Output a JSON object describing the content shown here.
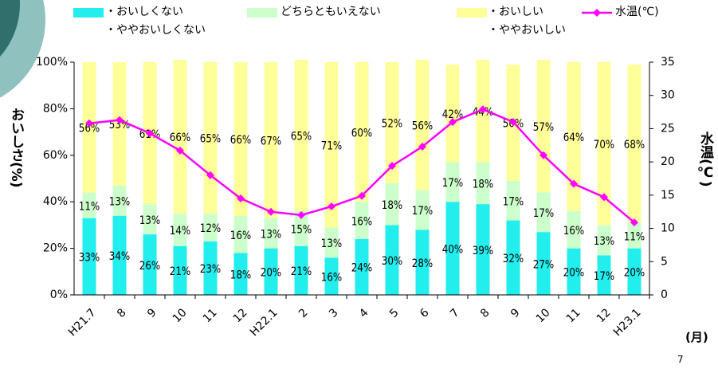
{
  "chart_data": {
    "type": "stacked-bar-line",
    "categories": [
      "H21.7",
      "8",
      "9",
      "10",
      "11",
      "12",
      "H22.1",
      "2",
      "3",
      "4",
      "5",
      "6",
      "7",
      "8",
      "9",
      "10",
      "11",
      "12",
      "H23.1"
    ],
    "series": [
      {
        "name": "・おいしくない\n・ややおいしくない",
        "color": "#22eeee",
        "values": [
          33,
          34,
          26,
          21,
          23,
          18,
          20,
          21,
          16,
          24,
          30,
          28,
          40,
          39,
          32,
          27,
          20,
          17,
          20
        ],
        "value_labels": [
          "33%",
          "34%",
          "26%",
          "21%",
          "23%",
          "18%",
          "20%",
          "21%",
          "16%",
          "24%",
          "30%",
          "28%",
          "40%",
          "39%",
          "32%",
          "27%",
          "20%",
          "17%",
          "20%"
        ]
      },
      {
        "name": "どちらともいえない",
        "color": "#ccffcc",
        "values": [
          11,
          13,
          13,
          14,
          12,
          16,
          13,
          15,
          13,
          16,
          18,
          17,
          17,
          18,
          17,
          17,
          16,
          13,
          11
        ],
        "value_labels": [
          "11%",
          "13%",
          "13%",
          "14%",
          "12%",
          "16%",
          "13%",
          "15%",
          "13%",
          "16%",
          "18%",
          "17%",
          "17%",
          "18%",
          "17%",
          "17%",
          "16%",
          "13%",
          "11%"
        ]
      },
      {
        "name": "・おいしい\n・ややおいしい",
        "color": "#ffff99",
        "values": [
          56,
          53,
          61,
          66,
          65,
          66,
          67,
          65,
          71,
          60,
          52,
          56,
          42,
          44,
          50,
          57,
          64,
          70,
          68
        ],
        "value_labels": [
          "56%",
          "53%",
          "61%",
          "66%",
          "65%",
          "66%",
          "67%",
          "65%",
          "71%",
          "60%",
          "52%",
          "56%",
          "42%",
          "44%",
          "50%",
          "57%",
          "64%",
          "70%",
          "68%"
        ]
      },
      {
        "name": "水温(℃)",
        "color": "#ff00ff",
        "axis": "y2",
        "values": [
          25.8,
          26.3,
          24.3,
          21.7,
          18,
          14.5,
          12.5,
          12,
          13.3,
          14.9,
          19.4,
          22.3,
          26,
          27.9,
          26,
          21,
          16.7,
          14.7,
          10.9
        ]
      }
    ],
    "ylabel": "おいしさ(%)",
    "y2label": "水温(℃)",
    "xlabel": "(月)",
    "ylim": [
      0,
      100
    ],
    "yticks": [
      {
        "value": 0,
        "label": "0%"
      },
      {
        "value": 20,
        "label": "20%"
      },
      {
        "value": 40,
        "label": "40%"
      },
      {
        "value": 60,
        "label": "60%"
      },
      {
        "value": 80,
        "label": "80%"
      },
      {
        "value": 100,
        "label": "100%"
      }
    ],
    "y2lim": [
      0,
      35
    ],
    "y2ticks": [
      0,
      5,
      10,
      15,
      20,
      25,
      30,
      35
    ],
    "page_number": "7"
  }
}
